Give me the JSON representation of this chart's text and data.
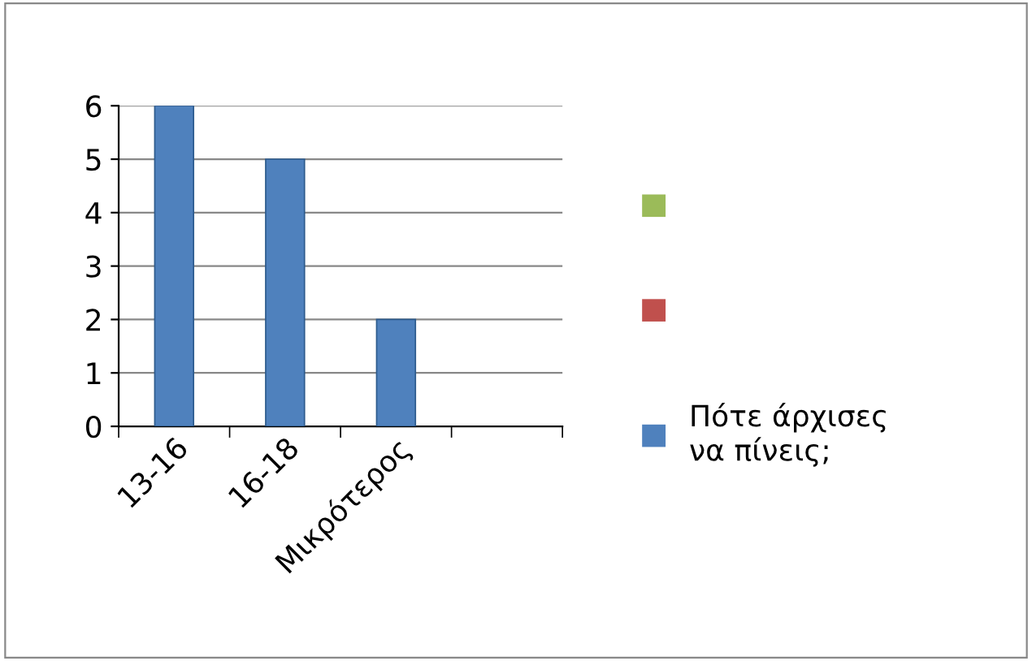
{
  "chart_data": {
    "type": "bar",
    "categories": [
      "13-16",
      "16-18",
      "Μικρότερος",
      null
    ],
    "series": [
      {
        "color": "#9bbb59",
        "values": [
          null,
          null,
          null,
          null
        ]
      },
      {
        "color": "#c0504d",
        "values": [
          null,
          null,
          null,
          null
        ]
      },
      {
        "name": "Πότε άρχισες να πίνεις;",
        "color": "#4f81bd",
        "values": [
          6,
          5,
          2,
          null
        ]
      }
    ],
    "ylim": [
      0,
      6
    ],
    "yticks": [
      0,
      1,
      2,
      3,
      4,
      5,
      6
    ],
    "grid": "y",
    "legend": "right"
  }
}
